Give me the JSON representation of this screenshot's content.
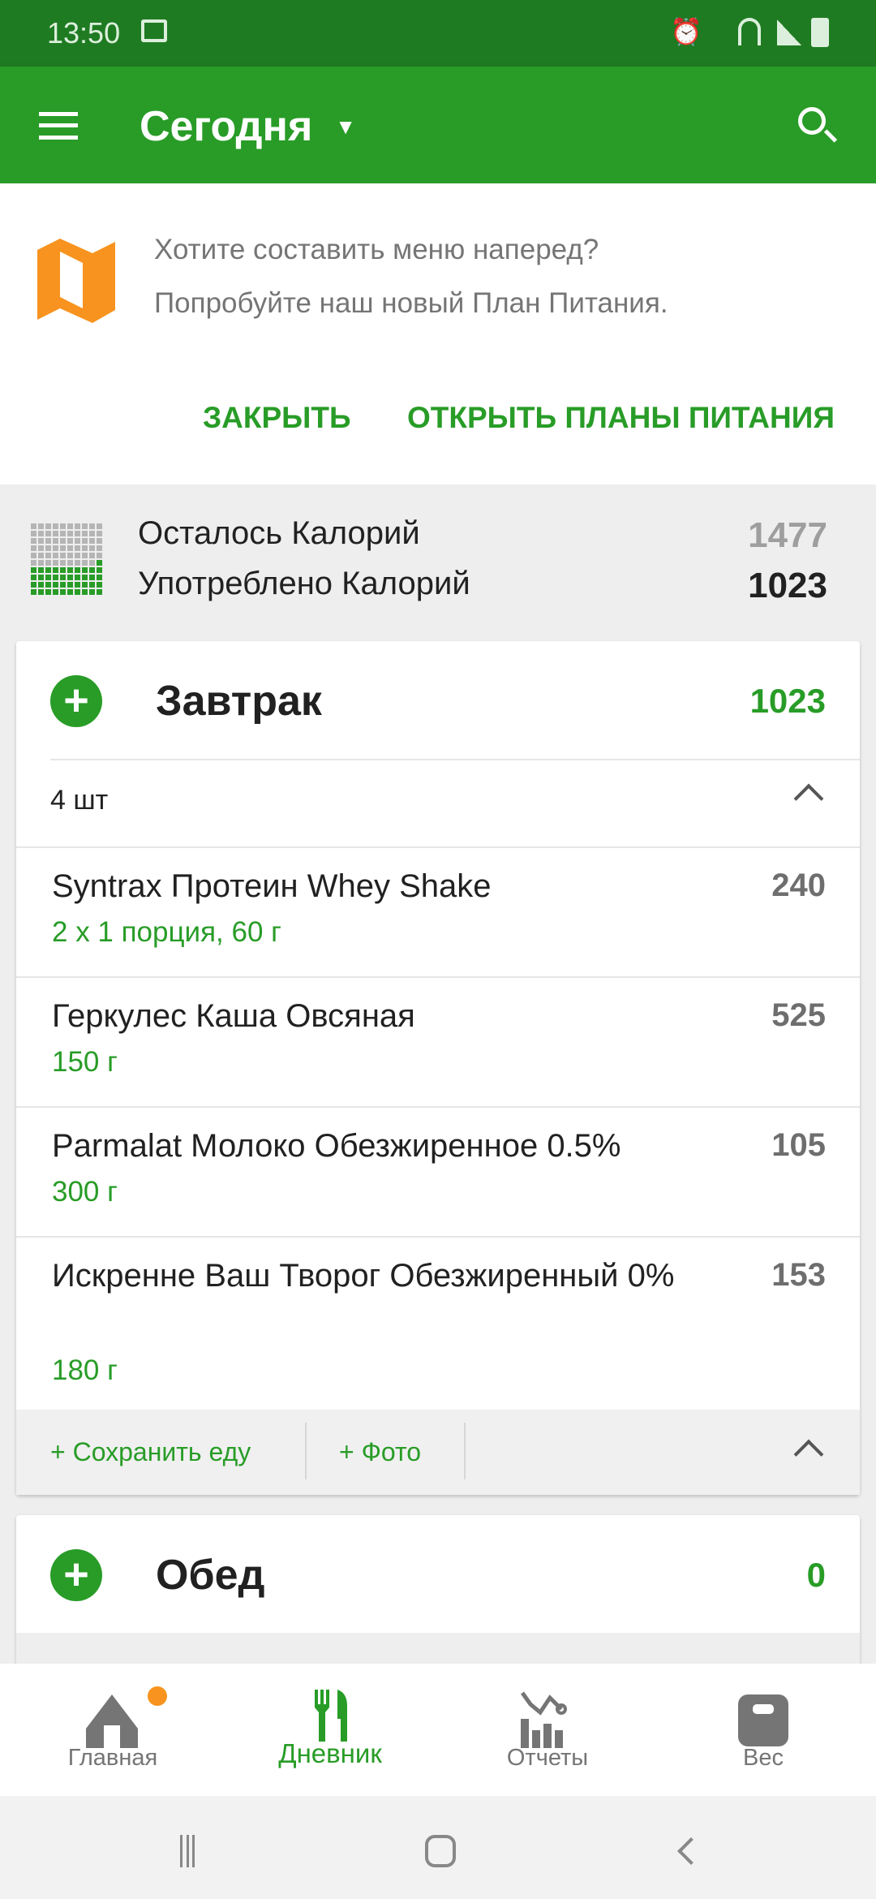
{
  "status_bar": {
    "time": "13:50"
  },
  "app_bar": {
    "title": "Сегодня"
  },
  "banner": {
    "line1": "Хотите составить меню наперед?",
    "line2": "Попробуйте наш новый План Питания.",
    "close_label": "ЗАКРЫТЬ",
    "open_label": "ОТКРЫТЬ ПЛАНЫ ПИТАНИЯ"
  },
  "summary": {
    "remaining_label": "Осталось Калорий",
    "remaining_value": "1477",
    "consumed_label": "Употреблено Калорий",
    "consumed_value": "1023",
    "consumed_fraction": 0.41
  },
  "breakfast": {
    "title": "Завтрак",
    "calories": "1023",
    "count": "4 шт",
    "items": [
      {
        "name": "Syntrax Протеин Whey Shake",
        "serving": "2  x 1 порция, 60 г",
        "calories": "240"
      },
      {
        "name": "Геркулес Каша Овсяная",
        "serving": "150  г",
        "calories": "525"
      },
      {
        "name": "Parmalat Молоко Обезжиренное 0.5%",
        "serving": "300 г",
        "calories": "105"
      },
      {
        "name": "Искренне Ваш Творог Обезжиренный 0%",
        "serving": "180 г",
        "calories": "153"
      }
    ],
    "save_label": "+ Сохранить еду",
    "photo_label": "+ Фото"
  },
  "lunch": {
    "title": "Обед",
    "calories": "0"
  },
  "bottom_nav": [
    {
      "label": "Главная"
    },
    {
      "label": "Дневник"
    },
    {
      "label": "Отчеты"
    },
    {
      "label": "Вес"
    }
  ],
  "colors": {
    "primary": "#289c27",
    "status": "#1f7b22",
    "accent": "#f7931e"
  }
}
